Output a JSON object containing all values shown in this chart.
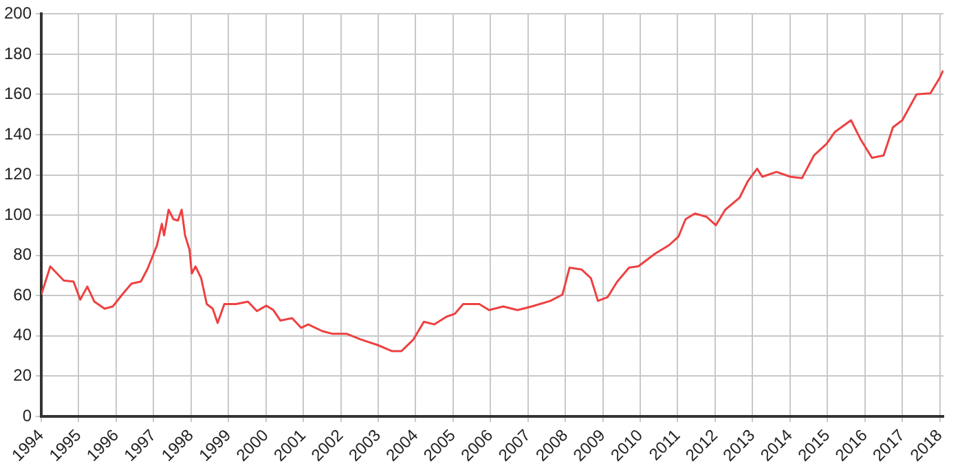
{
  "chart_data": {
    "type": "line",
    "xlim": [
      1994,
      2018.1
    ],
    "xticks": [
      1994,
      1995,
      1996,
      1997,
      1998,
      1999,
      2000,
      2001,
      2002,
      2003,
      2004,
      2005,
      2006,
      2007,
      2008,
      2009,
      2010,
      2011,
      2012,
      2013,
      2014,
      2015,
      2016,
      2017,
      2018
    ],
    "ylim": [
      0,
      200
    ],
    "yticks": [
      0,
      20,
      40,
      60,
      80,
      100,
      120,
      140,
      160,
      180,
      200
    ],
    "grid": true,
    "legend": false,
    "marker": "none",
    "line_style": "solid",
    "series": [
      {
        "color": "#ee4040",
        "x": [
          1994.0,
          1994.24,
          1994.42,
          1994.6,
          1994.86,
          1995.04,
          1995.23,
          1995.42,
          1995.69,
          1995.91,
          1996.16,
          1996.41,
          1996.66,
          1996.84,
          1997.09,
          1997.22,
          1997.28,
          1997.4,
          1997.53,
          1997.65,
          1997.75,
          1997.84,
          1997.96,
          1998.02,
          1998.12,
          1998.27,
          1998.42,
          1998.58,
          1998.71,
          1998.89,
          1999.2,
          1999.52,
          1999.76,
          2000.01,
          2000.2,
          2000.39,
          2000.7,
          2000.94,
          2001.13,
          2001.5,
          2001.78,
          2002.16,
          2002.54,
          2002.99,
          2003.37,
          2003.62,
          2003.94,
          2004.22,
          2004.5,
          2004.82,
          2005.05,
          2005.27,
          2005.7,
          2005.96,
          2006.34,
          2006.72,
          2007.1,
          2007.6,
          2007.92,
          2008.11,
          2008.43,
          2008.68,
          2008.87,
          2009.13,
          2009.38,
          2009.7,
          2009.95,
          2010.4,
          2010.77,
          2011.02,
          2011.21,
          2011.46,
          2011.77,
          2012.02,
          2012.27,
          2012.65,
          2012.87,
          2013.12,
          2013.26,
          2013.64,
          2014.01,
          2014.32,
          2014.64,
          2014.98,
          2015.2,
          2015.63,
          2015.88,
          2016.19,
          2016.5,
          2016.75,
          2017.0,
          2017.38,
          2017.75,
          2018.0,
          2018.09
        ],
        "values": [
          60.5,
          74.5,
          71,
          67.5,
          67,
          58,
          64.5,
          57,
          53.5,
          54.6,
          60.5,
          66,
          67,
          73.4,
          85,
          95.7,
          90,
          102.7,
          98,
          97.3,
          102.7,
          90,
          82.8,
          71,
          74.5,
          68.7,
          55.8,
          53.5,
          46.4,
          55.8,
          55.8,
          57,
          52.3,
          55,
          52.8,
          47.6,
          48.8,
          44,
          45.7,
          42.4,
          41,
          41,
          38.2,
          35.4,
          32.4,
          32.4,
          38.2,
          47,
          45.7,
          49.5,
          51,
          55.8,
          55.8,
          52.8,
          54.6,
          52.8,
          54.6,
          57.4,
          60.5,
          73.9,
          73,
          68.7,
          57.4,
          59.3,
          66.8,
          73.9,
          74.6,
          80.9,
          85.1,
          89.3,
          98,
          100.8,
          99.2,
          95,
          102.7,
          108.6,
          116.8,
          123.1,
          119.1,
          121.5,
          119.1,
          118.4,
          129.7,
          135.5,
          141.4,
          147.2,
          137.9,
          128.5,
          129.7,
          143.7,
          147.2,
          160.1,
          160.6,
          168.3,
          171.9
        ]
      }
    ]
  }
}
